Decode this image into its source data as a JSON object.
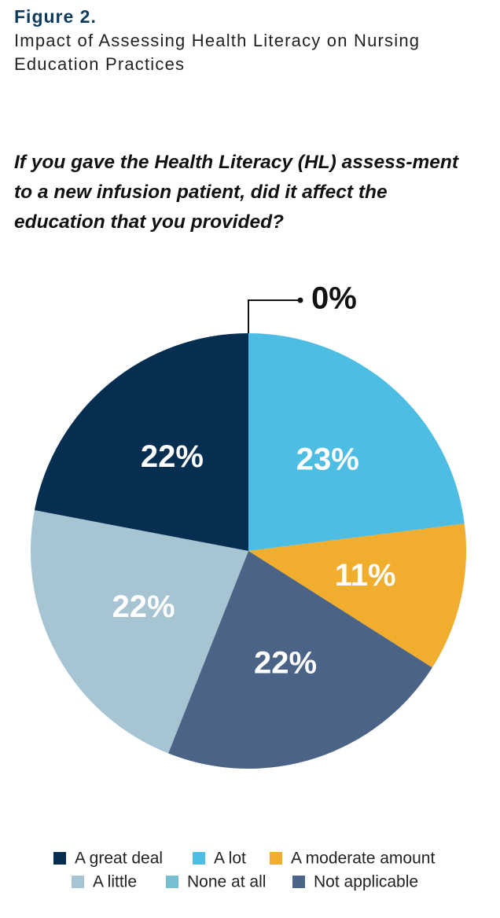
{
  "chart_data": {
    "type": "pie",
    "title": "Figure 2.",
    "subtitle": "Impact of Assessing Health Literacy on Nursing Education Practices",
    "question": "If you gave the Health Literacy (HL) assess-ment to a new infusion patient, did it affect the education that you provided?",
    "categories": [
      "A lot",
      "A moderate amount",
      "Not applicable",
      "A little",
      "A great deal",
      "None at all"
    ],
    "values": [
      23,
      11,
      22,
      22,
      22,
      0
    ],
    "value_labels": [
      "23%",
      "11%",
      "22%",
      "22%",
      "22%",
      "0%"
    ],
    "colors": [
      "#4dbde4",
      "#f0ad2e",
      "#4a6387",
      "#a7c4d2",
      "#062e50",
      "#76bfd0"
    ]
  }
}
